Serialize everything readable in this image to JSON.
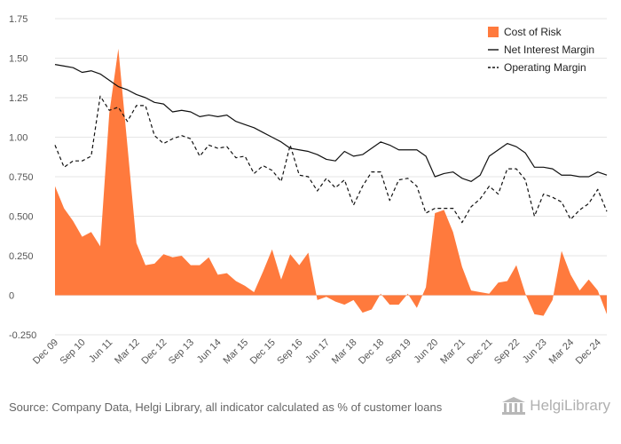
{
  "source_note": "Source: Company Data, Helgi Library, all indicator calculated as % of customer loans",
  "logo_text": "HelgiLibrary",
  "chart_data": {
    "type": "area",
    "x_tick_labels": [
      "Dec 09",
      "Sep 10",
      "Jun 11",
      "Mar 12",
      "Dec 12",
      "Sep 13",
      "Jun 14",
      "Mar 15",
      "Dec 15",
      "Sep 16",
      "Jun 17",
      "Mar 18",
      "Dec 18",
      "Sep 19",
      "Jun 20",
      "Mar 21",
      "Dec 21",
      "Sep 22",
      "Jun 23",
      "Mar 24",
      "Dec 24"
    ],
    "y_tick_labels": [
      "-0.250",
      "0",
      "0.250",
      "0.500",
      "0.750",
      "1.00",
      "1.25",
      "1.50",
      "1.75"
    ],
    "ylim": [
      -0.25,
      1.75
    ],
    "grid": true,
    "legend_position": "top-right",
    "colors": {
      "cost_of_risk": "#ff7a3d",
      "net_interest_margin": "#111111",
      "operating_margin": "#111111",
      "grid": "#e6e6e6"
    },
    "series": [
      {
        "name": "Cost of Risk",
        "style": "area",
        "values": [
          0.69,
          0.55,
          0.47,
          0.37,
          0.4,
          0.31,
          1.15,
          1.56,
          0.95,
          0.33,
          0.19,
          0.2,
          0.26,
          0.24,
          0.25,
          0.19,
          0.19,
          0.24,
          0.13,
          0.14,
          0.09,
          0.06,
          0.02,
          0.15,
          0.29,
          0.1,
          0.26,
          0.19,
          0.27,
          -0.03,
          -0.01,
          -0.04,
          -0.06,
          -0.03,
          -0.11,
          -0.09,
          0.01,
          -0.06,
          -0.06,
          0.01,
          -0.08,
          0.05,
          0.52,
          0.54,
          0.4,
          0.18,
          0.03,
          0.02,
          0.01,
          0.08,
          0.09,
          0.19,
          0.01,
          -0.12,
          -0.13,
          -0.03,
          0.28,
          0.13,
          0.03,
          0.1,
          0.03,
          -0.12
        ]
      },
      {
        "name": "Net Interest Margin",
        "style": "solid",
        "values": [
          1.46,
          1.45,
          1.44,
          1.41,
          1.42,
          1.4,
          1.36,
          1.32,
          1.3,
          1.27,
          1.25,
          1.22,
          1.21,
          1.16,
          1.17,
          1.16,
          1.13,
          1.14,
          1.13,
          1.14,
          1.1,
          1.08,
          1.06,
          1.03,
          1.0,
          0.97,
          0.93,
          0.92,
          0.91,
          0.89,
          0.86,
          0.85,
          0.91,
          0.88,
          0.89,
          0.93,
          0.97,
          0.95,
          0.92,
          0.92,
          0.92,
          0.88,
          0.75,
          0.77,
          0.78,
          0.74,
          0.72,
          0.76,
          0.88,
          0.92,
          0.96,
          0.94,
          0.9,
          0.81,
          0.81,
          0.8,
          0.76,
          0.76,
          0.75,
          0.75,
          0.78,
          0.76
        ]
      },
      {
        "name": "Operating Margin",
        "style": "dashed",
        "values": [
          0.95,
          0.81,
          0.85,
          0.85,
          0.88,
          1.26,
          1.17,
          1.19,
          1.1,
          1.2,
          1.2,
          1.01,
          0.96,
          0.99,
          1.01,
          0.99,
          0.88,
          0.95,
          0.93,
          0.94,
          0.87,
          0.88,
          0.77,
          0.82,
          0.79,
          0.72,
          0.95,
          0.76,
          0.75,
          0.66,
          0.74,
          0.68,
          0.73,
          0.57,
          0.69,
          0.78,
          0.78,
          0.6,
          0.73,
          0.74,
          0.69,
          0.52,
          0.55,
          0.55,
          0.55,
          0.46,
          0.56,
          0.61,
          0.69,
          0.64,
          0.8,
          0.8,
          0.73,
          0.5,
          0.64,
          0.62,
          0.59,
          0.48,
          0.54,
          0.58,
          0.67,
          0.53
        ]
      }
    ]
  }
}
